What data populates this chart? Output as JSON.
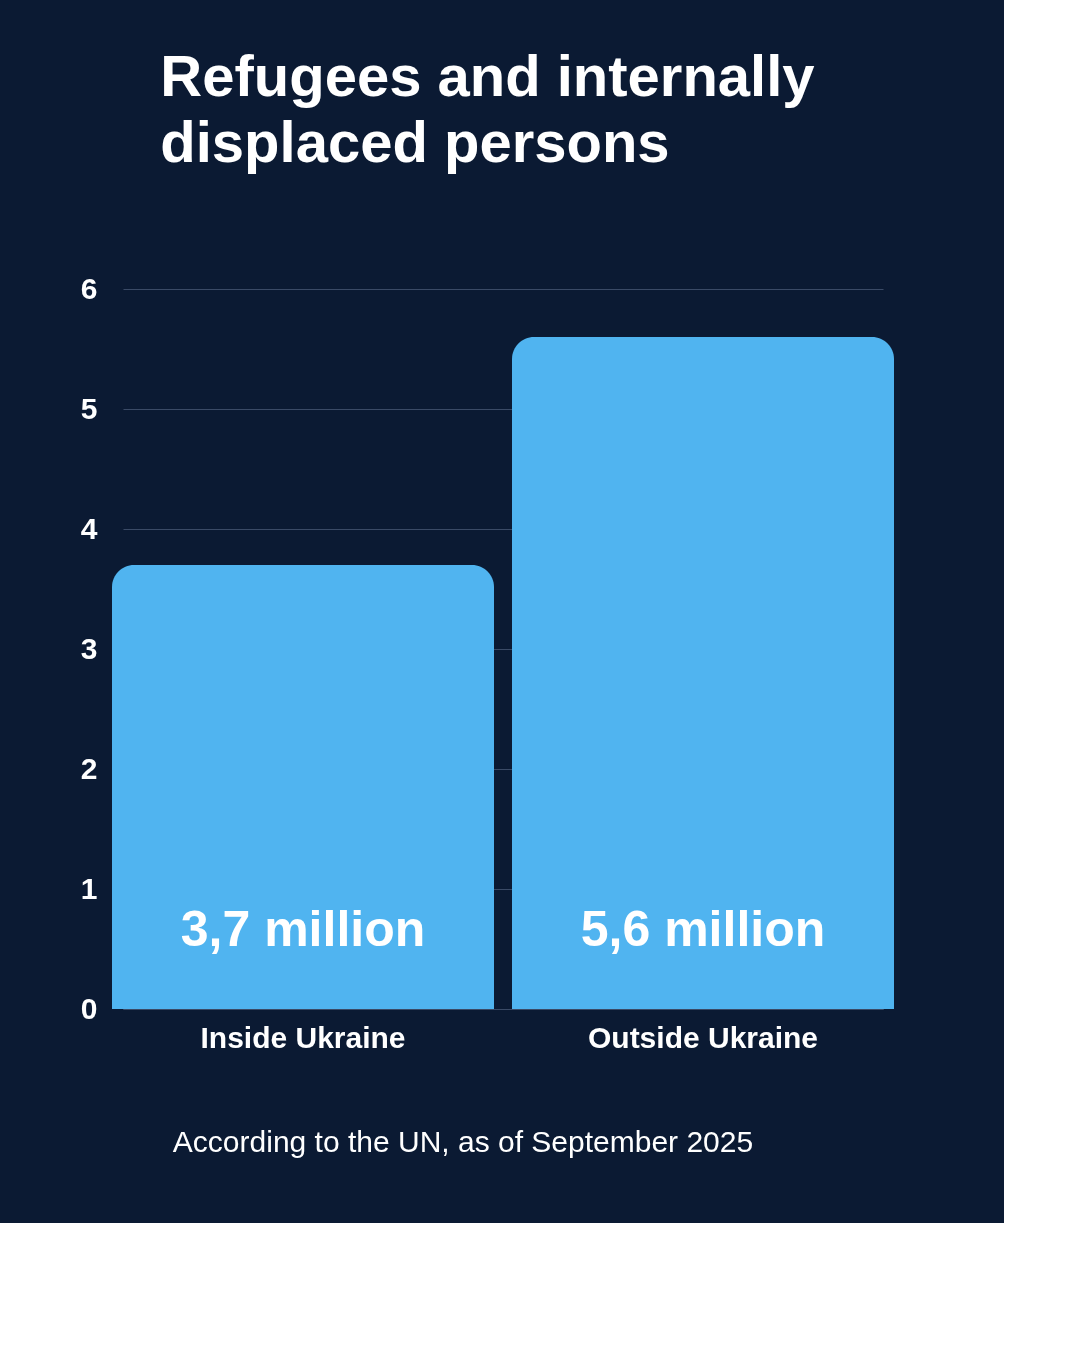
{
  "chart_data": {
    "type": "bar",
    "title": "Refugees and internally displaced persons",
    "categories": [
      "Inside Ukraine",
      "Outside Ukraine"
    ],
    "values": [
      3.7,
      5.6
    ],
    "value_labels": [
      "3,7 million",
      "5,6 million"
    ],
    "color": "#50b4f0",
    "ylim": [
      0,
      6
    ],
    "yticks": [
      0,
      1,
      2,
      3,
      4,
      5,
      6
    ],
    "grid": "y",
    "annotations": [
      "According to the UN, as of September 2025"
    ]
  }
}
